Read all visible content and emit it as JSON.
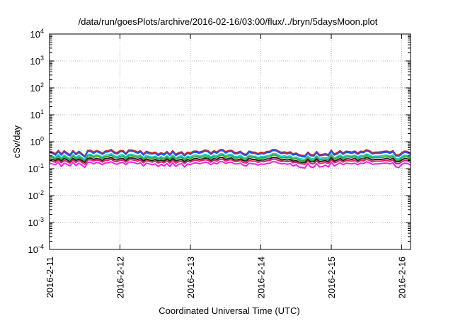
{
  "chart_data": {
    "type": "line",
    "title": "/data/run/goesPlots/archive/2016-02-16/03:00/flux/../bryn/5daysMoon.plot",
    "xlabel": "Coordinated Universal Time (UTC)",
    "ylabel": "cSv/day",
    "x_range": [
      "2016-02-11T00:00",
      "2016-02-16T03:00"
    ],
    "x_ticks": [
      "2016-2-11",
      "2016-2-12",
      "2016-2-13",
      "2016-2-14",
      "2016-2-15",
      "2016-2-16"
    ],
    "y_scale": "log",
    "ylim": [
      0.0001,
      10000
    ],
    "y_ticks": [
      {
        "value": 0.0001,
        "base": "10",
        "exp": "-4"
      },
      {
        "value": 0.001,
        "base": "10",
        "exp": "-3"
      },
      {
        "value": 0.01,
        "base": "10",
        "exp": "-2"
      },
      {
        "value": 0.1,
        "base": "10",
        "exp": "-1"
      },
      {
        "value": 1,
        "base": "10",
        "exp": "0"
      },
      {
        "value": 10,
        "base": "10",
        "exp": "1"
      },
      {
        "value": 100,
        "base": "10",
        "exp": "2"
      },
      {
        "value": 1000,
        "base": "10",
        "exp": "3"
      },
      {
        "value": 10000,
        "base": "10",
        "exp": "4"
      }
    ],
    "grid": true,
    "legend": "none",
    "series": [
      {
        "color": "#cc2222",
        "values": [
          0.44,
          0.41,
          0.36,
          0.47,
          0.35,
          0.46,
          0.38,
          0.33,
          0.47,
          0.36,
          0.44,
          0.36,
          0.29,
          0.47,
          0.48,
          0.41,
          0.47,
          0.43,
          0.37,
          0.45,
          0.46,
          0.51,
          0.42,
          0.39,
          0.46,
          0.47,
          0.37,
          0.49,
          0.49,
          0.46,
          0.41,
          0.46,
          0.35,
          0.44,
          0.4,
          0.38,
          0.41,
          0.34,
          0.39,
          0.35,
          0.43,
          0.34,
          0.46,
          0.34,
          0.39,
          0.42,
          0.33,
          0.41,
          0.38,
          0.44,
          0.45,
          0.41,
          0.44,
          0.49,
          0.46,
          0.38,
          0.46,
          0.41,
          0.5,
          0.51,
          0.42,
          0.47,
          0.48,
          0.4,
          0.4,
          0.44,
          0.36,
          0.34,
          0.45,
          0.41,
          0.41,
          0.36,
          0.4,
          0.39,
          0.43,
          0.44,
          0.51,
          0.51,
          0.45,
          0.4,
          0.42,
          0.39,
          0.42,
          0.35,
          0.38,
          0.33,
          0.31,
          0.3,
          0.41,
          0.33,
          0.32,
          0.43,
          0.33,
          0.34,
          0.36,
          0.33,
          0.48,
          0.35,
          0.39,
          0.46,
          0.38,
          0.44,
          0.43,
          0.41,
          0.45,
          0.38,
          0.44,
          0.43,
          0.5,
          0.46,
          0.39,
          0.41,
          0.41,
          0.42,
          0.44,
          0.45,
          0.41,
          0.46,
          0.33,
          0.32,
          0.39,
          0.45,
          0.43,
          0.36
        ]
      },
      {
        "color": "#2255ee",
        "values": [
          0.4,
          0.37,
          0.32,
          0.43,
          0.32,
          0.42,
          0.34,
          0.3,
          0.43,
          0.33,
          0.4,
          0.33,
          0.27,
          0.43,
          0.44,
          0.37,
          0.43,
          0.39,
          0.34,
          0.41,
          0.42,
          0.47,
          0.38,
          0.35,
          0.42,
          0.43,
          0.34,
          0.45,
          0.45,
          0.42,
          0.37,
          0.42,
          0.32,
          0.4,
          0.36,
          0.35,
          0.37,
          0.31,
          0.35,
          0.32,
          0.39,
          0.31,
          0.42,
          0.31,
          0.35,
          0.38,
          0.3,
          0.37,
          0.34,
          0.4,
          0.41,
          0.37,
          0.4,
          0.45,
          0.42,
          0.34,
          0.42,
          0.37,
          0.46,
          0.47,
          0.38,
          0.43,
          0.44,
          0.36,
          0.36,
          0.4,
          0.33,
          0.31,
          0.41,
          0.37,
          0.37,
          0.33,
          0.36,
          0.35,
          0.39,
          0.4,
          0.47,
          0.47,
          0.41,
          0.36,
          0.38,
          0.35,
          0.38,
          0.32,
          0.34,
          0.3,
          0.28,
          0.27,
          0.37,
          0.3,
          0.29,
          0.39,
          0.3,
          0.31,
          0.33,
          0.3,
          0.44,
          0.32,
          0.35,
          0.42,
          0.34,
          0.4,
          0.39,
          0.37,
          0.41,
          0.34,
          0.4,
          0.39,
          0.46,
          0.42,
          0.35,
          0.37,
          0.37,
          0.38,
          0.4,
          0.41,
          0.37,
          0.42,
          0.3,
          0.29,
          0.35,
          0.41,
          0.39,
          0.33
        ]
      },
      {
        "color": "#22cccc",
        "values": [
          0.31,
          0.29,
          0.26,
          0.33,
          0.25,
          0.32,
          0.27,
          0.24,
          0.33,
          0.26,
          0.31,
          0.26,
          0.22,
          0.33,
          0.34,
          0.29,
          0.33,
          0.3,
          0.27,
          0.32,
          0.32,
          0.36,
          0.3,
          0.28,
          0.32,
          0.33,
          0.27,
          0.34,
          0.34,
          0.32,
          0.29,
          0.32,
          0.25,
          0.31,
          0.28,
          0.27,
          0.29,
          0.25,
          0.28,
          0.25,
          0.3,
          0.25,
          0.32,
          0.25,
          0.28,
          0.3,
          0.24,
          0.29,
          0.27,
          0.31,
          0.32,
          0.29,
          0.31,
          0.34,
          0.32,
          0.27,
          0.32,
          0.29,
          0.35,
          0.36,
          0.3,
          0.33,
          0.34,
          0.28,
          0.28,
          0.31,
          0.26,
          0.25,
          0.32,
          0.29,
          0.29,
          0.26,
          0.28,
          0.28,
          0.3,
          0.31,
          0.36,
          0.36,
          0.32,
          0.28,
          0.3,
          0.28,
          0.3,
          0.25,
          0.27,
          0.24,
          0.23,
          0.22,
          0.29,
          0.24,
          0.23,
          0.3,
          0.24,
          0.25,
          0.26,
          0.24,
          0.34,
          0.25,
          0.28,
          0.32,
          0.27,
          0.31,
          0.3,
          0.29,
          0.32,
          0.27,
          0.31,
          0.3,
          0.35,
          0.32,
          0.28,
          0.29,
          0.29,
          0.3,
          0.31,
          0.32,
          0.29,
          0.32,
          0.24,
          0.23,
          0.28,
          0.32,
          0.3,
          0.26
        ]
      },
      {
        "color": "#33aa33",
        "values": [
          0.27,
          0.26,
          0.23,
          0.29,
          0.22,
          0.28,
          0.24,
          0.21,
          0.29,
          0.23,
          0.27,
          0.23,
          0.19,
          0.29,
          0.3,
          0.26,
          0.29,
          0.27,
          0.24,
          0.28,
          0.28,
          0.32,
          0.26,
          0.25,
          0.28,
          0.29,
          0.24,
          0.3,
          0.3,
          0.28,
          0.26,
          0.28,
          0.22,
          0.27,
          0.25,
          0.24,
          0.26,
          0.22,
          0.25,
          0.22,
          0.27,
          0.22,
          0.28,
          0.22,
          0.25,
          0.26,
          0.21,
          0.26,
          0.24,
          0.27,
          0.28,
          0.26,
          0.27,
          0.3,
          0.28,
          0.24,
          0.28,
          0.26,
          0.31,
          0.32,
          0.26,
          0.29,
          0.3,
          0.25,
          0.25,
          0.27,
          0.23,
          0.22,
          0.28,
          0.26,
          0.26,
          0.23,
          0.25,
          0.25,
          0.27,
          0.27,
          0.32,
          0.32,
          0.28,
          0.25,
          0.26,
          0.25,
          0.26,
          0.22,
          0.24,
          0.21,
          0.2,
          0.19,
          0.26,
          0.21,
          0.2,
          0.27,
          0.21,
          0.22,
          0.23,
          0.21,
          0.3,
          0.22,
          0.25,
          0.28,
          0.24,
          0.27,
          0.27,
          0.26,
          0.28,
          0.24,
          0.27,
          0.27,
          0.31,
          0.28,
          0.25,
          0.26,
          0.26,
          0.26,
          0.27,
          0.28,
          0.26,
          0.28,
          0.21,
          0.2,
          0.25,
          0.28,
          0.27,
          0.23
        ]
      },
      {
        "color": "#222222",
        "values": [
          0.23,
          0.22,
          0.2,
          0.24,
          0.19,
          0.24,
          0.21,
          0.18,
          0.24,
          0.2,
          0.23,
          0.2,
          0.17,
          0.24,
          0.25,
          0.22,
          0.24,
          0.23,
          0.2,
          0.24,
          0.24,
          0.26,
          0.22,
          0.21,
          0.24,
          0.24,
          0.2,
          0.25,
          0.25,
          0.24,
          0.22,
          0.24,
          0.19,
          0.23,
          0.21,
          0.2,
          0.22,
          0.19,
          0.21,
          0.19,
          0.23,
          0.19,
          0.24,
          0.19,
          0.21,
          0.22,
          0.18,
          0.22,
          0.2,
          0.23,
          0.24,
          0.22,
          0.23,
          0.25,
          0.24,
          0.2,
          0.24,
          0.22,
          0.26,
          0.26,
          0.22,
          0.24,
          0.25,
          0.21,
          0.21,
          0.23,
          0.2,
          0.19,
          0.24,
          0.22,
          0.22,
          0.2,
          0.21,
          0.21,
          0.23,
          0.23,
          0.26,
          0.26,
          0.24,
          0.21,
          0.22,
          0.21,
          0.22,
          0.19,
          0.2,
          0.18,
          0.17,
          0.17,
          0.22,
          0.18,
          0.18,
          0.23,
          0.18,
          0.19,
          0.2,
          0.18,
          0.25,
          0.19,
          0.21,
          0.24,
          0.2,
          0.23,
          0.23,
          0.22,
          0.24,
          0.2,
          0.23,
          0.23,
          0.26,
          0.24,
          0.21,
          0.22,
          0.22,
          0.22,
          0.23,
          0.24,
          0.22,
          0.24,
          0.18,
          0.18,
          0.21,
          0.24,
          0.23,
          0.2
        ]
      },
      {
        "color": "#dd2266",
        "values": [
          0.2,
          0.19,
          0.17,
          0.21,
          0.165,
          0.2,
          0.18,
          0.16,
          0.21,
          0.17,
          0.2,
          0.17,
          0.145,
          0.21,
          0.215,
          0.19,
          0.21,
          0.2,
          0.175,
          0.205,
          0.205,
          0.225,
          0.19,
          0.18,
          0.205,
          0.21,
          0.175,
          0.215,
          0.215,
          0.205,
          0.19,
          0.205,
          0.165,
          0.2,
          0.185,
          0.175,
          0.19,
          0.16,
          0.18,
          0.165,
          0.195,
          0.16,
          0.205,
          0.16,
          0.18,
          0.19,
          0.155,
          0.19,
          0.175,
          0.2,
          0.205,
          0.19,
          0.2,
          0.215,
          0.205,
          0.175,
          0.205,
          0.19,
          0.22,
          0.225,
          0.19,
          0.21,
          0.215,
          0.185,
          0.185,
          0.2,
          0.17,
          0.16,
          0.2,
          0.19,
          0.19,
          0.17,
          0.185,
          0.18,
          0.195,
          0.2,
          0.225,
          0.225,
          0.2,
          0.185,
          0.19,
          0.18,
          0.19,
          0.165,
          0.175,
          0.155,
          0.15,
          0.145,
          0.19,
          0.155,
          0.15,
          0.195,
          0.155,
          0.16,
          0.17,
          0.155,
          0.215,
          0.165,
          0.18,
          0.205,
          0.175,
          0.2,
          0.195,
          0.19,
          0.2,
          0.175,
          0.2,
          0.195,
          0.22,
          0.205,
          0.18,
          0.19,
          0.19,
          0.19,
          0.2,
          0.2,
          0.19,
          0.205,
          0.155,
          0.15,
          0.18,
          0.2,
          0.195,
          0.17
        ]
      },
      {
        "color": "#ee22ee",
        "values": [
          0.16,
          0.15,
          0.14,
          0.17,
          0.12,
          0.16,
          0.145,
          0.125,
          0.17,
          0.13,
          0.16,
          0.135,
          0.11,
          0.17,
          0.175,
          0.15,
          0.17,
          0.16,
          0.14,
          0.165,
          0.165,
          0.18,
          0.155,
          0.145,
          0.165,
          0.17,
          0.14,
          0.175,
          0.175,
          0.165,
          0.15,
          0.165,
          0.125,
          0.16,
          0.15,
          0.14,
          0.15,
          0.12,
          0.145,
          0.125,
          0.155,
          0.12,
          0.165,
          0.12,
          0.145,
          0.155,
          0.115,
          0.15,
          0.14,
          0.16,
          0.165,
          0.15,
          0.16,
          0.175,
          0.165,
          0.14,
          0.165,
          0.15,
          0.18,
          0.18,
          0.155,
          0.17,
          0.175,
          0.15,
          0.15,
          0.16,
          0.135,
          0.125,
          0.16,
          0.15,
          0.15,
          0.135,
          0.15,
          0.145,
          0.155,
          0.16,
          0.18,
          0.18,
          0.16,
          0.15,
          0.155,
          0.145,
          0.155,
          0.125,
          0.14,
          0.115,
          0.11,
          0.105,
          0.155,
          0.115,
          0.11,
          0.155,
          0.115,
          0.12,
          0.135,
          0.115,
          0.175,
          0.125,
          0.145,
          0.165,
          0.14,
          0.16,
          0.155,
          0.15,
          0.16,
          0.14,
          0.16,
          0.155,
          0.18,
          0.165,
          0.145,
          0.15,
          0.15,
          0.155,
          0.16,
          0.16,
          0.15,
          0.165,
          0.115,
          0.11,
          0.145,
          0.16,
          0.155,
          0.135
        ]
      }
    ]
  }
}
